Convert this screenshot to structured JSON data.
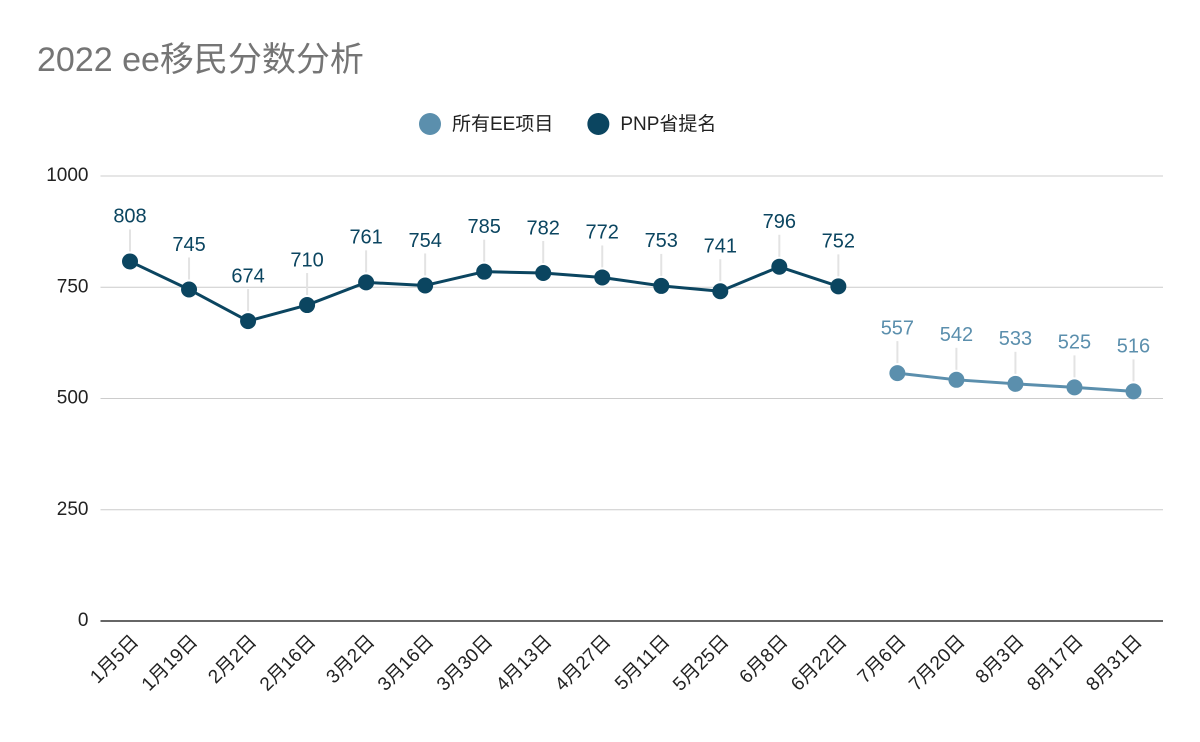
{
  "chart_data": {
    "type": "line",
    "title": "2022 ee移民分数分析",
    "categories": [
      "1月5日",
      "1月19日",
      "2月2日",
      "2月16日",
      "3月2日",
      "3月16日",
      "3月30日",
      "4月13日",
      "4月27日",
      "5月11日",
      "5月25日",
      "6月8日",
      "6月22日",
      "7月6日",
      "7月20日",
      "8月3日",
      "8月17日",
      "8月31日"
    ],
    "series": [
      {
        "name": "所有EE项目",
        "color": "#5b8fad",
        "values": [
          null,
          null,
          null,
          null,
          null,
          null,
          null,
          null,
          null,
          null,
          null,
          null,
          null,
          557,
          542,
          533,
          525,
          516
        ]
      },
      {
        "name": "PNP省提名",
        "color": "#0b4560",
        "values": [
          808,
          745,
          674,
          710,
          761,
          754,
          785,
          782,
          772,
          753,
          741,
          796,
          752,
          null,
          null,
          null,
          null,
          null
        ]
      }
    ],
    "ylim": [
      0,
      1000
    ],
    "yticks": [
      0,
      250,
      500,
      750,
      1000
    ],
    "grid": true,
    "legend": "top"
  }
}
